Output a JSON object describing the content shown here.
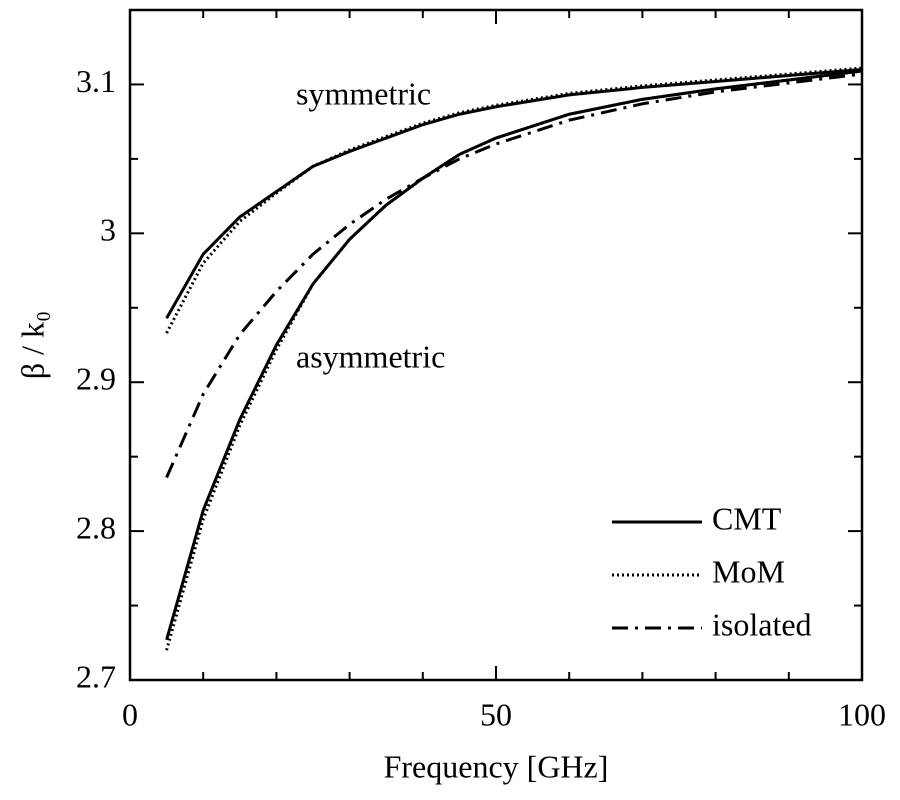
{
  "chart_data": {
    "type": "line",
    "x_label": "Frequency [GHz]",
    "y_label": "β / k₀",
    "x": [
      5,
      10,
      15,
      20,
      25,
      30,
      35,
      40,
      45,
      50,
      60,
      70,
      80,
      90,
      100
    ],
    "series": [
      {
        "name": "CMT",
        "color": "#000000",
        "dash": "solid",
        "values": [
          2.943,
          2.986,
          3.011,
          3.028,
          3.045,
          3.055,
          3.064,
          3.073,
          3.08,
          3.085,
          3.093,
          3.098,
          3.102,
          3.106,
          3.11
        ]
      },
      {
        "name": "MoM",
        "color": "#000000",
        "dash": "dotted",
        "values": [
          2.933,
          2.98,
          3.008,
          3.027,
          3.045,
          3.056,
          3.065,
          3.074,
          3.081,
          3.086,
          3.094,
          3.099,
          3.103,
          3.107,
          3.111
        ]
      },
      {
        "name": "isolated",
        "color": "#000000",
        "dash": "dashdot",
        "values": [
          2.836,
          2.892,
          2.932,
          2.961,
          2.986,
          3.006,
          3.023,
          3.037,
          3.05,
          3.06,
          3.076,
          3.087,
          3.095,
          3.101,
          3.107
        ]
      },
      {
        "color": "#000000",
        "dash": "solid",
        "values": [
          2.727,
          2.814,
          2.875,
          2.925,
          2.966,
          2.996,
          3.019,
          3.037,
          3.053,
          3.064,
          3.08,
          3.09,
          3.097,
          3.103,
          3.109
        ]
      },
      {
        "color": "#000000",
        "dash": "dotted",
        "values": [
          2.72,
          2.808,
          2.871,
          2.922,
          2.966,
          2.996,
          3.019,
          3.037,
          3.053,
          3.064,
          3.08,
          3.09,
          3.097,
          3.103,
          3.109
        ]
      }
    ],
    "annotations": [
      "symmetric",
      "asymmetric"
    ],
    "xlim": [
      0,
      100
    ],
    "xticks": [
      0,
      50,
      100
    ],
    "xminorticks": [
      10,
      20,
      30,
      40,
      60,
      70,
      80,
      90
    ],
    "ylim": [
      2.7,
      3.15
    ],
    "yticks": [
      2.7,
      2.8,
      2.9,
      3,
      3.1
    ],
    "yminorticks": [
      2.75,
      2.85,
      2.95,
      3.05
    ],
    "legend": "lower right"
  }
}
